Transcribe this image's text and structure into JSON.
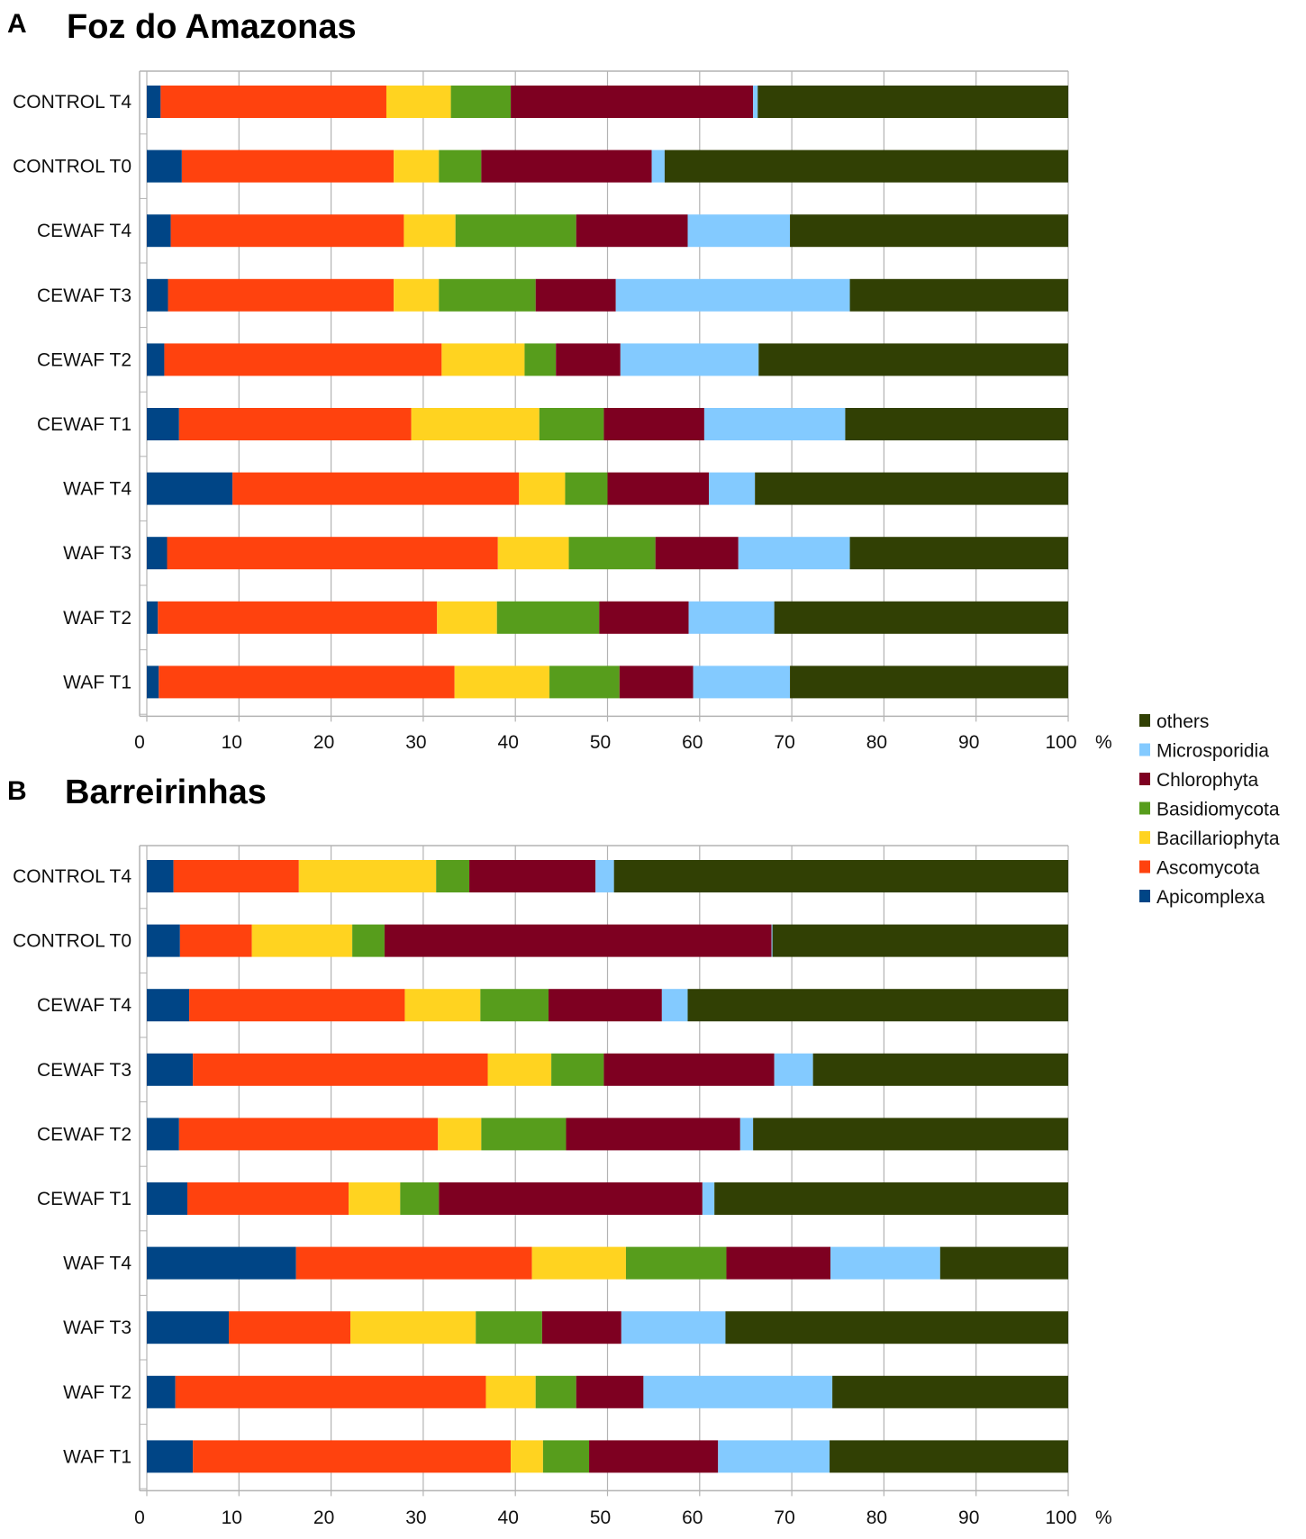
{
  "colors": {
    "Apicomplexa": "#004586",
    "Ascomycota": "#ff420e",
    "Bacillariophyta": "#ffd320",
    "Basidiomycota": "#579d1c",
    "Chlorophyta": "#7e0021",
    "Microsporidia": "#83caff",
    "others": "#314004"
  },
  "chart_data": [
    {
      "type": "bar",
      "stacked": true,
      "orientation": "horizontal",
      "panel": "A",
      "title": "Foz do Amazonas",
      "xlim": [
        0,
        100
      ],
      "xticks": [
        "0",
        "10",
        "20",
        "30",
        "40",
        "50",
        "60",
        "70",
        "80",
        "90",
        "100"
      ],
      "xunit": "%",
      "grid": true,
      "legend_position": "right",
      "categories": [
        "CONTROL T4",
        "CONTROL T0",
        "CEWAF T4",
        "CEWAF T3",
        "CEWAF T2",
        "CEWAF T1",
        "WAF T4",
        "WAF T3",
        "WAF T2",
        "WAF T1"
      ],
      "series": [
        {
          "name": "Apicomplexa",
          "values": [
            1.5,
            3.8,
            2.6,
            2.3,
            1.9,
            3.5,
            9.3,
            2.2,
            1.2,
            1.3
          ]
        },
        {
          "name": "Ascomycota",
          "values": [
            24.5,
            23.0,
            25.3,
            24.5,
            30.1,
            25.2,
            31.1,
            35.9,
            30.3,
            32.1
          ]
        },
        {
          "name": "Bacillariophyta",
          "values": [
            7.0,
            4.9,
            5.6,
            4.9,
            9.0,
            13.9,
            5.0,
            7.7,
            6.5,
            10.3
          ]
        },
        {
          "name": "Basidiomycota",
          "values": [
            6.5,
            4.6,
            13.1,
            10.5,
            3.4,
            7.0,
            4.6,
            9.4,
            11.1,
            7.6
          ]
        },
        {
          "name": "Chlorophyta",
          "values": [
            26.3,
            18.5,
            12.1,
            8.7,
            7.0,
            10.9,
            11.0,
            9.0,
            9.7,
            8.0
          ]
        },
        {
          "name": "Microsporidia",
          "values": [
            0.5,
            1.4,
            11.1,
            25.4,
            15.0,
            15.3,
            5.0,
            12.1,
            9.3,
            10.5
          ]
        },
        {
          "name": "others",
          "values": [
            33.7,
            43.8,
            30.2,
            23.7,
            33.6,
            24.2,
            34.0,
            23.7,
            31.9,
            30.2
          ]
        }
      ]
    },
    {
      "type": "bar",
      "stacked": true,
      "orientation": "horizontal",
      "panel": "B",
      "title": "Barreirinhas",
      "xlim": [
        0,
        100
      ],
      "xticks": [
        "0",
        "10",
        "20",
        "30",
        "40",
        "50",
        "60",
        "70",
        "80",
        "90",
        "100"
      ],
      "xunit": "%",
      "grid": true,
      "categories": [
        "CONTROL T4",
        "CONTROL T0",
        "CEWAF T4",
        "CEWAF T3",
        "CEWAF T2",
        "CEWAF T1",
        "WAF T4",
        "WAF T3",
        "WAF T2",
        "WAF T1"
      ],
      "series": [
        {
          "name": "Apicomplexa",
          "values": [
            2.9,
            3.6,
            4.6,
            5.0,
            3.5,
            4.4,
            16.2,
            8.9,
            3.1,
            5.0
          ]
        },
        {
          "name": "Ascomycota",
          "values": [
            13.6,
            7.8,
            23.4,
            32.0,
            28.1,
            17.5,
            25.6,
            13.2,
            33.7,
            34.5
          ]
        },
        {
          "name": "Bacillariophyta",
          "values": [
            14.9,
            10.9,
            8.2,
            6.9,
            4.7,
            5.6,
            10.2,
            13.6,
            5.4,
            3.5
          ]
        },
        {
          "name": "Basidiomycota",
          "values": [
            3.6,
            3.5,
            7.4,
            5.7,
            9.2,
            4.2,
            10.9,
            7.2,
            4.4,
            5.0
          ]
        },
        {
          "name": "Chlorophyta",
          "values": [
            13.7,
            42.0,
            12.3,
            18.5,
            18.9,
            28.6,
            11.3,
            8.6,
            7.3,
            14.0
          ]
        },
        {
          "name": "Microsporidia",
          "values": [
            2.0,
            0.1,
            2.8,
            4.2,
            1.4,
            1.3,
            11.9,
            11.3,
            20.5,
            12.1
          ]
        },
        {
          "name": "others",
          "values": [
            49.3,
            32.1,
            41.3,
            27.7,
            34.2,
            38.4,
            13.9,
            37.2,
            25.6,
            25.9
          ]
        }
      ]
    }
  ],
  "legend": [
    "others",
    "Microsporidia",
    "Chlorophyta",
    "Basidiomycota",
    "Bacillariophyta",
    "Ascomycota",
    "Apicomplexa"
  ]
}
